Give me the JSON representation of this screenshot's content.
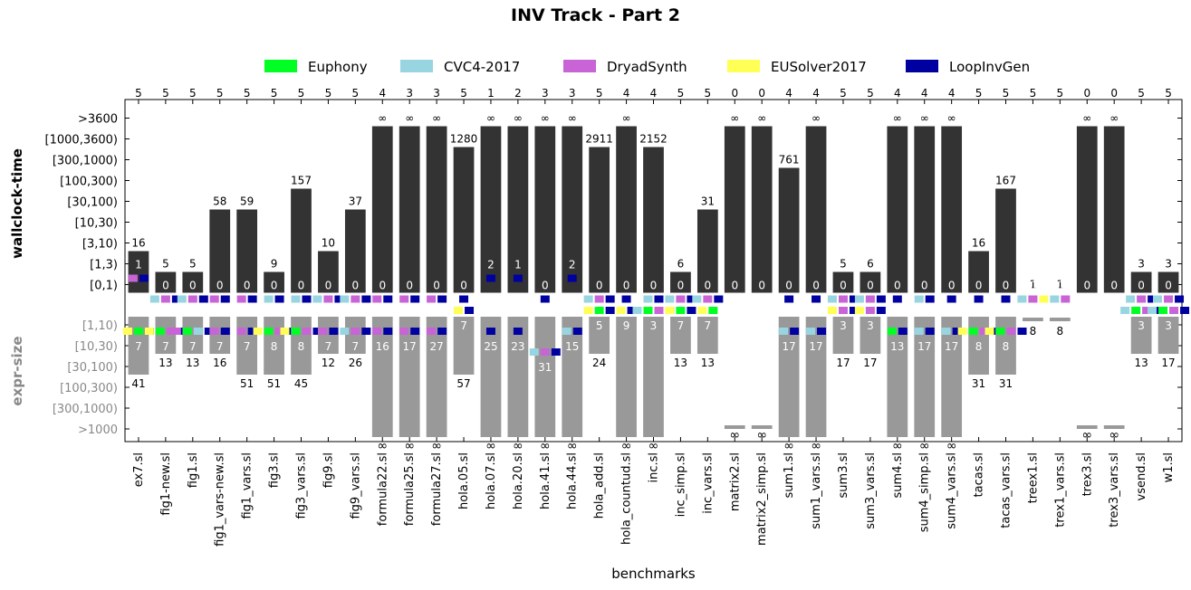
{
  "chart_data": {
    "type": "bar",
    "title": "INV Track - Part 2",
    "xlabel": "benchmarks",
    "ylabel_top": "wallclock-time",
    "ylabel_bottom": "expr-size",
    "time_ticks": [
      ">3600",
      "[1000,3600)",
      "[300,1000)",
      "[100,300)",
      "[30,100)",
      "[10,30)",
      "[3,10)",
      "[1,3)",
      "[0,1)"
    ],
    "size_ticks": [
      "[1,10)",
      "[10,30)",
      "[30,100)",
      "[100,300)",
      "[300,1000)",
      ">1000"
    ],
    "legend": [
      {
        "name": "Euphony",
        "color": "#00ff22"
      },
      {
        "name": "CVC4-2017",
        "color": "#99d5e0"
      },
      {
        "name": "DryadSynth",
        "color": "#c864d6"
      },
      {
        "name": "EUSolver2017",
        "color": "#ffff55"
      },
      {
        "name": "LoopInvGen",
        "color": "#0000a0"
      }
    ],
    "colors": {
      "time_bar": "#333333",
      "size_bar": "#999999",
      "size_tick_text": "#888888"
    },
    "infinity_symbol": "∞",
    "benchmarks": [
      {
        "name": "ex7.sl",
        "solved": "5",
        "t_lvl": 6,
        "t_lbl": "16",
        "fast": "1",
        "fast_lvl": 1,
        "fast_w": [
          "D",
          "L"
        ],
        "s_lvl": 2,
        "s_lbl": "41",
        "small": "7",
        "small_lvl": 1,
        "small_w": [
          "U",
          "E",
          "L"
        ]
      },
      {
        "name": "fig1-new.sl",
        "solved": "5",
        "t_lvl": 7,
        "t_lbl": "5",
        "fast": "0",
        "fast_lvl": 0,
        "fast_w": [
          "C",
          "D",
          "L"
        ],
        "s_lvl": 1,
        "s_lbl": "13",
        "small": "7",
        "small_lvl": 1,
        "small_w": [
          "U",
          "E",
          "D",
          "L"
        ]
      },
      {
        "name": "fig1.sl",
        "solved": "5",
        "t_lvl": 7,
        "t_lbl": "5",
        "fast": "0",
        "fast_lvl": 0,
        "fast_w": [
          "C",
          "D",
          "L"
        ],
        "s_lvl": 1,
        "s_lbl": "13",
        "small": "7",
        "small_lvl": 1,
        "small_w": [
          "D",
          "E",
          "C",
          "L"
        ]
      },
      {
        "name": "fig1_vars-new.sl",
        "solved": "5",
        "t_lvl": 4,
        "t_lbl": "58",
        "fast": "0",
        "fast_lvl": 0,
        "fast_w": [
          "D",
          "L"
        ],
        "s_lvl": 1,
        "s_lbl": "16",
        "small": "7",
        "small_lvl": 1,
        "small_w": [
          "D",
          "L"
        ]
      },
      {
        "name": "fig1_vars.sl",
        "solved": "5",
        "t_lvl": 4,
        "t_lbl": "59",
        "fast": "0",
        "fast_lvl": 0,
        "fast_w": [
          "D",
          "L"
        ],
        "s_lvl": 2,
        "s_lbl": "51",
        "small": "7",
        "small_lvl": 1,
        "small_w": [
          "D",
          "L"
        ]
      },
      {
        "name": "fig3.sl",
        "solved": "5",
        "t_lvl": 7,
        "t_lbl": "9",
        "fast": "0",
        "fast_lvl": 0,
        "fast_w": [
          "C",
          "L"
        ],
        "s_lvl": 2,
        "s_lbl": "51",
        "small": "8",
        "small_lvl": 1,
        "small_w": [
          "U",
          "E",
          "D",
          "L"
        ]
      },
      {
        "name": "fig3_vars.sl",
        "solved": "5",
        "t_lvl": 3,
        "t_lbl": "157",
        "fast": "0",
        "fast_lvl": 0,
        "fast_w": [
          "C",
          "L"
        ],
        "s_lvl": 2,
        "s_lbl": "45",
        "small": "8",
        "small_lvl": 1,
        "small_w": [
          "U",
          "E",
          "D",
          "L"
        ]
      },
      {
        "name": "fig9.sl",
        "solved": "5",
        "t_lvl": 6,
        "t_lbl": "10",
        "fast": "0",
        "fast_lvl": 0,
        "fast_w": [
          "C",
          "D",
          "L"
        ],
        "s_lvl": 1,
        "s_lbl": "12",
        "small": "7",
        "small_lvl": 1,
        "small_w": [
          "D",
          "L"
        ]
      },
      {
        "name": "fig9_vars.sl",
        "solved": "5",
        "t_lvl": 4,
        "t_lbl": "37",
        "fast": "0",
        "fast_lvl": 0,
        "fast_w": [
          "C",
          "D",
          "L"
        ],
        "s_lvl": 1,
        "s_lbl": "26",
        "small": "7",
        "small_lvl": 1,
        "small_w": [
          "C",
          "D",
          "L"
        ]
      },
      {
        "name": "formula22.sl",
        "solved": "4",
        "t_lvl": 0,
        "t_lbl": "∞",
        "fast": "0",
        "fast_lvl": 0,
        "fast_w": [
          "D",
          "L"
        ],
        "s_lvl": 5,
        "s_lbl": "∞",
        "small": "16",
        "small_lvl": 1,
        "small_w": [
          "D",
          "L"
        ]
      },
      {
        "name": "formula25.sl",
        "solved": "3",
        "t_lvl": 0,
        "t_lbl": "∞",
        "fast": "0",
        "fast_lvl": 0,
        "fast_w": [
          "D",
          "L"
        ],
        "s_lvl": 5,
        "s_lbl": "∞",
        "small": "17",
        "small_lvl": 1,
        "small_w": [
          "D",
          "L"
        ]
      },
      {
        "name": "formula27.sl",
        "solved": "3",
        "t_lvl": 0,
        "t_lbl": "∞",
        "fast": "0",
        "fast_lvl": 0,
        "fast_w": [
          "D",
          "L"
        ],
        "s_lvl": 5,
        "s_lbl": "∞",
        "small": "27",
        "small_lvl": 1,
        "small_w": [
          "D",
          "L"
        ]
      },
      {
        "name": "hola.05.sl",
        "solved": "5",
        "t_lvl": 1,
        "t_lbl": "1280",
        "fast": "0",
        "fast_lvl": 0,
        "fast_w": [
          "L"
        ],
        "s_lvl": 2,
        "s_lbl": "57",
        "small": "7",
        "small_lvl": 0,
        "small_w": [
          "U",
          "L"
        ]
      },
      {
        "name": "hola.07.sl",
        "solved": "1",
        "t_lvl": 0,
        "t_lbl": "∞",
        "fast": "2",
        "fast_lvl": 1,
        "fast_w": [
          "L"
        ],
        "s_lvl": 5,
        "s_lbl": "∞",
        "small": "25",
        "small_lvl": 1,
        "small_w": [
          "L"
        ]
      },
      {
        "name": "hola.20.sl",
        "solved": "2",
        "t_lvl": 0,
        "t_lbl": "∞",
        "fast": "1",
        "fast_lvl": 1,
        "fast_w": [
          "L"
        ],
        "s_lvl": 5,
        "s_lbl": "∞",
        "small": "23",
        "small_lvl": 1,
        "small_w": [
          "L"
        ]
      },
      {
        "name": "hola.41.sl",
        "solved": "3",
        "t_lvl": 0,
        "t_lbl": "∞",
        "fast": "0",
        "fast_lvl": 0,
        "fast_w": [
          "L"
        ],
        "s_lvl": 5,
        "s_lbl": "∞",
        "small": "31",
        "small_lvl": 2,
        "small_w": [
          "C",
          "D",
          "L"
        ]
      },
      {
        "name": "hola.44.sl",
        "solved": "3",
        "t_lvl": 0,
        "t_lbl": "∞",
        "fast": "2",
        "fast_lvl": 1,
        "fast_w": [
          "L"
        ],
        "s_lvl": 5,
        "s_lbl": "∞",
        "small": "15",
        "small_lvl": 1,
        "small_w": [
          "C",
          "L"
        ]
      },
      {
        "name": "hola_add.sl",
        "solved": "5",
        "t_lvl": 1,
        "t_lbl": "2911",
        "fast": "0",
        "fast_lvl": 0,
        "fast_w": [
          "C",
          "D",
          "L"
        ],
        "s_lvl": 1,
        "s_lbl": "24",
        "small": "5",
        "small_lvl": 0,
        "small_w": [
          "U",
          "E",
          "L"
        ]
      },
      {
        "name": "hola_countud.sl",
        "solved": "4",
        "t_lvl": 0,
        "t_lbl": "∞",
        "fast": "0",
        "fast_lvl": 0,
        "fast_w": [
          "L"
        ],
        "s_lvl": 5,
        "s_lbl": "∞",
        "small": "9",
        "small_lvl": 0,
        "small_w": [
          "U",
          "L"
        ]
      },
      {
        "name": "inc.sl",
        "solved": "4",
        "t_lvl": 1,
        "t_lbl": "2152",
        "fast": "0",
        "fast_lvl": 0,
        "fast_w": [
          "C",
          "L"
        ],
        "s_lvl": 5,
        "s_lbl": "∞",
        "small": "3",
        "small_lvl": 0,
        "small_w": [
          "C",
          "E",
          "D",
          "L"
        ]
      },
      {
        "name": "inc_simp.sl",
        "solved": "5",
        "t_lvl": 7,
        "t_lbl": "6",
        "fast": "0",
        "fast_lvl": 0,
        "fast_w": [
          "C",
          "D",
          "L"
        ],
        "s_lvl": 1,
        "s_lbl": "13",
        "small": "7",
        "small_lvl": 0,
        "small_w": [
          "U",
          "E",
          "L"
        ]
      },
      {
        "name": "inc_vars.sl",
        "solved": "5",
        "t_lvl": 4,
        "t_lbl": "31",
        "fast": "0",
        "fast_lvl": 0,
        "fast_w": [
          "C",
          "D",
          "L"
        ],
        "s_lvl": 1,
        "s_lbl": "13",
        "small": "7",
        "small_lvl": 0,
        "small_w": [
          "U",
          "E"
        ]
      },
      {
        "name": "matrix2.sl",
        "solved": "0",
        "t_lvl": 0,
        "t_lbl": "∞",
        "fast": "0",
        "fast_lvl": null,
        "fast_w": [],
        "s_lvl": 6,
        "s_lbl": "∞",
        "small": "",
        "small_lvl": null,
        "small_w": []
      },
      {
        "name": "matrix2_simp.sl",
        "solved": "0",
        "t_lvl": 0,
        "t_lbl": "∞",
        "fast": "0",
        "fast_lvl": null,
        "fast_w": [],
        "s_lvl": 6,
        "s_lbl": "∞",
        "small": "",
        "small_lvl": null,
        "small_w": []
      },
      {
        "name": "sum1.sl",
        "solved": "4",
        "t_lvl": 2,
        "t_lbl": "761",
        "fast": "0",
        "fast_lvl": 0,
        "fast_w": [
          "L"
        ],
        "s_lvl": 5,
        "s_lbl": "∞",
        "small": "17",
        "small_lvl": 1,
        "small_w": [
          "C",
          "L"
        ]
      },
      {
        "name": "sum1_vars.sl",
        "solved": "4",
        "t_lvl": 0,
        "t_lbl": "∞",
        "fast": "0",
        "fast_lvl": 0,
        "fast_w": [
          "L"
        ],
        "s_lvl": 5,
        "s_lbl": "∞",
        "small": "17",
        "small_lvl": 1,
        "small_w": [
          "C",
          "L"
        ]
      },
      {
        "name": "sum3.sl",
        "solved": "5",
        "t_lvl": 7,
        "t_lbl": "5",
        "fast": "0",
        "fast_lvl": 0,
        "fast_w": [
          "C",
          "D",
          "L"
        ],
        "s_lvl": 1,
        "s_lbl": "17",
        "small": "3",
        "small_lvl": 0,
        "small_w": [
          "U",
          "D",
          "L"
        ]
      },
      {
        "name": "sum3_vars.sl",
        "solved": "5",
        "t_lvl": 7,
        "t_lbl": "6",
        "fast": "0",
        "fast_lvl": 0,
        "fast_w": [
          "C",
          "D",
          "L"
        ],
        "s_lvl": 1,
        "s_lbl": "17",
        "small": "3",
        "small_lvl": 0,
        "small_w": [
          "U",
          "D",
          "L"
        ]
      },
      {
        "name": "sum4.sl",
        "solved": "4",
        "t_lvl": 0,
        "t_lbl": "∞",
        "fast": "0",
        "fast_lvl": 0,
        "fast_w": [
          "L"
        ],
        "s_lvl": 5,
        "s_lbl": "∞",
        "small": "13",
        "small_lvl": 1,
        "small_w": [
          "E",
          "L"
        ]
      },
      {
        "name": "sum4_simp.sl",
        "solved": "4",
        "t_lvl": 0,
        "t_lbl": "∞",
        "fast": "0",
        "fast_lvl": 0,
        "fast_w": [
          "C",
          "L"
        ],
        "s_lvl": 5,
        "s_lbl": "∞",
        "small": "17",
        "small_lvl": 1,
        "small_w": [
          "C",
          "L"
        ]
      },
      {
        "name": "sum4_vars.sl",
        "solved": "4",
        "t_lvl": 0,
        "t_lbl": "∞",
        "fast": "0",
        "fast_lvl": 0,
        "fast_w": [
          "L"
        ],
        "s_lvl": 5,
        "s_lbl": "∞",
        "small": "17",
        "small_lvl": 1,
        "small_w": [
          "C",
          "L"
        ]
      },
      {
        "name": "tacas.sl",
        "solved": "5",
        "t_lvl": 6,
        "t_lbl": "16",
        "fast": "0",
        "fast_lvl": 0,
        "fast_w": [
          "L"
        ],
        "s_lvl": 2,
        "s_lbl": "31",
        "small": "8",
        "small_lvl": 1,
        "small_w": [
          "U",
          "E",
          "D",
          "L"
        ]
      },
      {
        "name": "tacas_vars.sl",
        "solved": "5",
        "t_lvl": 3,
        "t_lbl": "167",
        "fast": "0",
        "fast_lvl": 0,
        "fast_w": [
          "L"
        ],
        "s_lvl": 2,
        "s_lbl": "31",
        "small": "8",
        "small_lvl": 1,
        "small_w": [
          "U",
          "E",
          "D",
          "L"
        ]
      },
      {
        "name": "treex1.sl",
        "solved": "5",
        "t_lvl": 8,
        "t_lbl": "1",
        "fast": "0",
        "fast_lvl": 0,
        "fast_w": [
          "C",
          "D",
          "U"
        ],
        "s_lvl": 0,
        "s_lbl": "8",
        "small": "",
        "small_lvl": null,
        "small_w": []
      },
      {
        "name": "trex1_vars.sl",
        "solved": "5",
        "t_lvl": 8,
        "t_lbl": "1",
        "fast": "0",
        "fast_lvl": 0,
        "fast_w": [
          "C",
          "D"
        ],
        "s_lvl": 0,
        "s_lbl": "8",
        "small": "",
        "small_lvl": null,
        "small_w": []
      },
      {
        "name": "trex3.sl",
        "solved": "0",
        "t_lvl": 0,
        "t_lbl": "∞",
        "fast": "0",
        "fast_lvl": null,
        "fast_w": [],
        "s_lvl": 6,
        "s_lbl": "∞",
        "small": "",
        "small_lvl": null,
        "small_w": []
      },
      {
        "name": "trex3_vars.sl",
        "solved": "0",
        "t_lvl": 0,
        "t_lbl": "∞",
        "fast": "0",
        "fast_lvl": null,
        "fast_w": [],
        "s_lvl": 6,
        "s_lbl": "∞",
        "small": "",
        "small_lvl": null,
        "small_w": []
      },
      {
        "name": "vsend.sl",
        "solved": "5",
        "t_lvl": 7,
        "t_lbl": "3",
        "fast": "0",
        "fast_lvl": 0,
        "fast_w": [
          "C",
          "D",
          "L"
        ],
        "s_lvl": 1,
        "s_lbl": "13",
        "small": "3",
        "small_lvl": 0,
        "small_w": [
          "C",
          "E",
          "D",
          "L"
        ]
      },
      {
        "name": "w1.sl",
        "solved": "5",
        "t_lvl": 7,
        "t_lbl": "3",
        "fast": "0",
        "fast_lvl": 0,
        "fast_w": [
          "C",
          "D",
          "L"
        ],
        "s_lvl": 1,
        "s_lbl": "17",
        "small": "3",
        "small_lvl": 0,
        "small_w": [
          "C",
          "E",
          "D",
          "L"
        ]
      }
    ]
  }
}
